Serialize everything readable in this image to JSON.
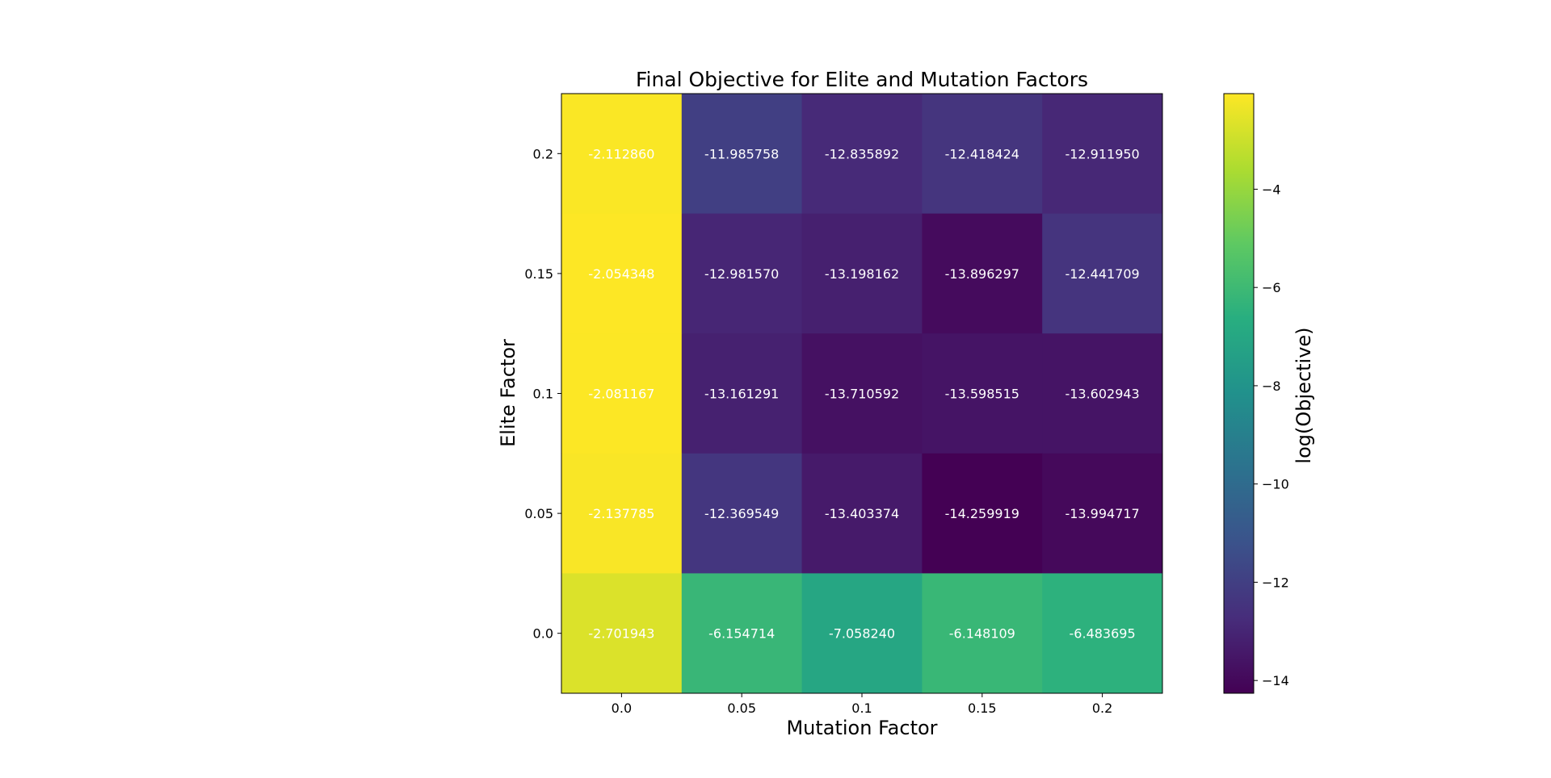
{
  "chart_data": {
    "type": "heatmap",
    "title": "Final Objective for Elite and Mutation Factors",
    "xlabel": "Mutation Factor",
    "ylabel": "Elite Factor",
    "x": [
      "0.0",
      "0.05",
      "0.1",
      "0.15",
      "0.2"
    ],
    "y": [
      "0.2",
      "0.15",
      "0.1",
      "0.05",
      "0.0"
    ],
    "values": [
      [
        -2.11286,
        -11.985758,
        -12.835892,
        -12.418424,
        -12.91195
      ],
      [
        -2.054348,
        -12.98157,
        -13.198162,
        -13.896297,
        -12.441709
      ],
      [
        -2.081167,
        -13.161291,
        -13.710592,
        -13.598515,
        -13.602943
      ],
      [
        -2.137785,
        -12.369549,
        -13.403374,
        -14.259919,
        -13.994717
      ],
      [
        -2.701943,
        -6.154714,
        -7.05824,
        -6.148109,
        -6.483695
      ]
    ],
    "value_labels": [
      [
        "-2.112860",
        "-11.985758",
        "-12.835892",
        "-12.418424",
        "-12.911950"
      ],
      [
        "-2.054348",
        "-12.981570",
        "-13.198162",
        "-13.896297",
        "-12.441709"
      ],
      [
        "-2.081167",
        "-13.161291",
        "-13.710592",
        "-13.598515",
        "-13.602943"
      ],
      [
        "-2.137785",
        "-12.369549",
        "-13.403374",
        "-14.259919",
        "-13.994717"
      ],
      [
        "-2.701943",
        "-6.154714",
        "-7.058240",
        "-6.148109",
        "-6.483695"
      ]
    ],
    "colormap": "viridis",
    "colorbar": {
      "label": "log(Objective)",
      "range": [
        -14.259919,
        -2.054348
      ],
      "ticks": [
        -4,
        -6,
        -8,
        -10,
        -12,
        -14
      ],
      "tick_labels": [
        "−4",
        "−6",
        "−8",
        "−10",
        "−12",
        "−14"
      ]
    }
  }
}
